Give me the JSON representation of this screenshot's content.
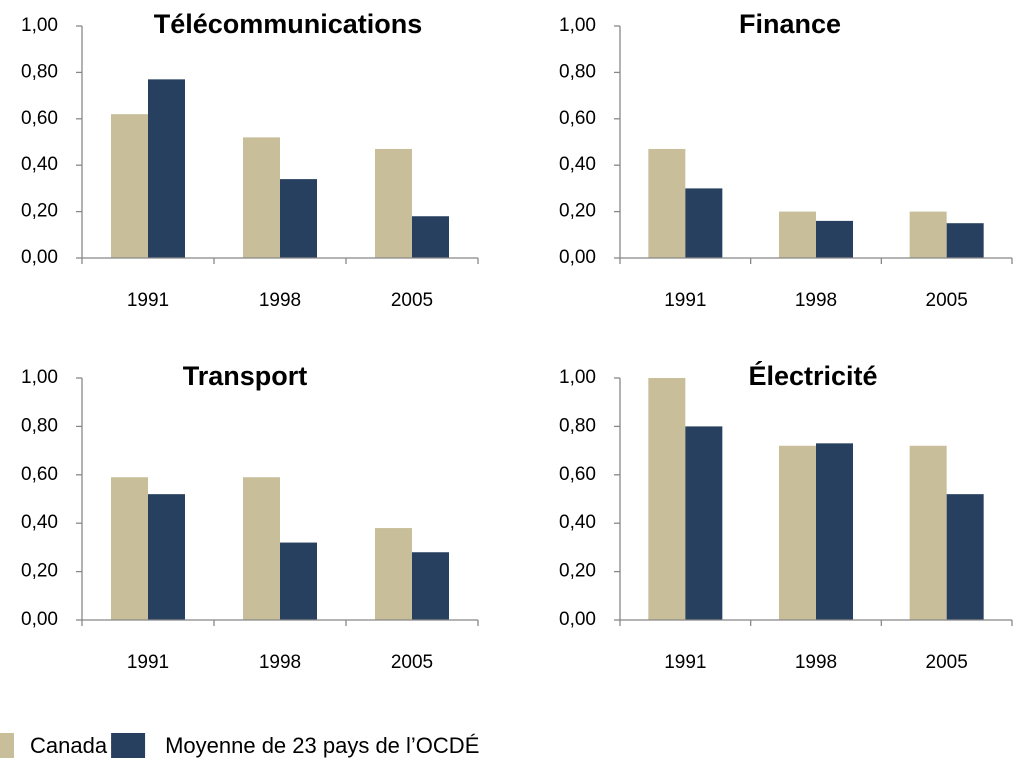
{
  "chart_data": [
    {
      "type": "bar",
      "title": "Télécommunications",
      "categories": [
        "1991",
        "1998",
        "2005"
      ],
      "series": [
        {
          "name": "Canada",
          "color": "#c8bf9a",
          "values": [
            0.62,
            0.52,
            0.47
          ]
        },
        {
          "name": "Moyenne de 23 pays de l’OCDÉ",
          "color": "#27405f",
          "values": [
            0.77,
            0.34,
            0.18
          ]
        }
      ],
      "ylim": [
        0,
        1
      ],
      "yticks": [
        {
          "value": 0,
          "label": "0,00"
        },
        {
          "value": 0.2,
          "label": "0,20"
        },
        {
          "value": 0.4,
          "label": "0,40"
        },
        {
          "value": 0.6,
          "label": "0,60"
        },
        {
          "value": 0.8,
          "label": "0,80"
        },
        {
          "value": 1,
          "label": "1,00"
        }
      ]
    },
    {
      "type": "bar",
      "title": "Finance",
      "categories": [
        "1991",
        "1998",
        "2005"
      ],
      "series": [
        {
          "name": "Canada",
          "color": "#c8bf9a",
          "values": [
            0.47,
            0.2,
            0.2
          ]
        },
        {
          "name": "Moyenne de 23 pays de l’OCDÉ",
          "color": "#27405f",
          "values": [
            0.3,
            0.16,
            0.15
          ]
        }
      ],
      "ylim": [
        0,
        1
      ],
      "yticks": [
        {
          "value": 0,
          "label": "0,00"
        },
        {
          "value": 0.2,
          "label": "0,20"
        },
        {
          "value": 0.4,
          "label": "0,40"
        },
        {
          "value": 0.6,
          "label": "0,60"
        },
        {
          "value": 0.8,
          "label": "0,80"
        },
        {
          "value": 1,
          "label": "1,00"
        }
      ]
    },
    {
      "type": "bar",
      "title": "Transport",
      "categories": [
        "1991",
        "1998",
        "2005"
      ],
      "series": [
        {
          "name": "Canada",
          "color": "#c8bf9a",
          "values": [
            0.59,
            0.59,
            0.38
          ]
        },
        {
          "name": "Moyenne de 23 pays de l’OCDÉ",
          "color": "#27405f",
          "values": [
            0.52,
            0.32,
            0.28
          ]
        }
      ],
      "ylim": [
        0,
        1
      ],
      "yticks": [
        {
          "value": 0,
          "label": "0,00"
        },
        {
          "value": 0.2,
          "label": "0,20"
        },
        {
          "value": 0.4,
          "label": "0,40"
        },
        {
          "value": 0.6,
          "label": "0,60"
        },
        {
          "value": 0.8,
          "label": "0,80"
        },
        {
          "value": 1,
          "label": "1,00"
        }
      ]
    },
    {
      "type": "bar",
      "title": "Électricité",
      "categories": [
        "1991",
        "1998",
        "2005"
      ],
      "series": [
        {
          "name": "Canada",
          "color": "#c8bf9a",
          "values": [
            1.0,
            0.72,
            0.72
          ]
        },
        {
          "name": "Moyenne de 23 pays de l’OCDÉ",
          "color": "#27405f",
          "values": [
            0.8,
            0.73,
            0.52
          ]
        }
      ],
      "ylim": [
        0,
        1
      ],
      "yticks": [
        {
          "value": 0,
          "label": "0,00"
        },
        {
          "value": 0.2,
          "label": "0,20"
        },
        {
          "value": 0.4,
          "label": "0,40"
        },
        {
          "value": 0.6,
          "label": "0,60"
        },
        {
          "value": 0.8,
          "label": "0,80"
        },
        {
          "value": 1,
          "label": "1,00"
        }
      ]
    }
  ]
}
